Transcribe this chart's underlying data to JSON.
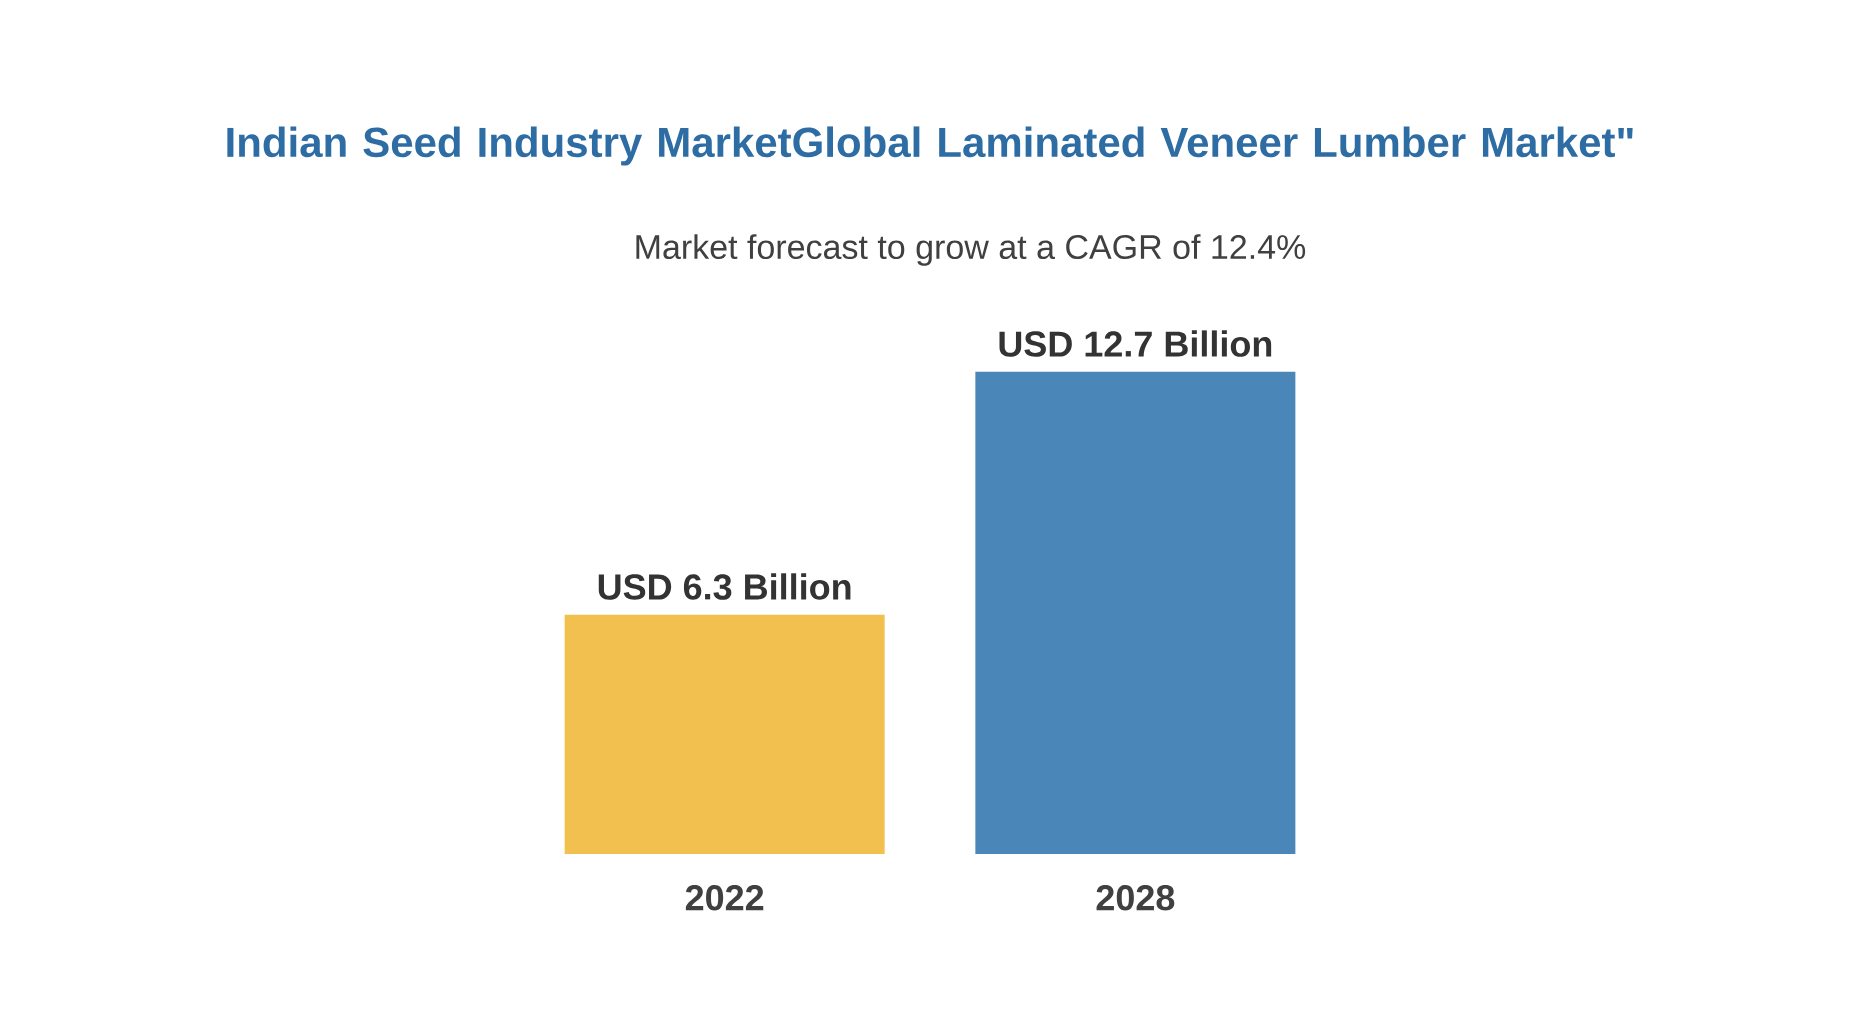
{
  "chart_data": {
    "type": "bar",
    "title": "Indian Seed Industry MarketGlobal Laminated Veneer Lumber Market\"",
    "subtitle": "Market forecast to grow at a CAGR of 12.4%",
    "categories": [
      "2022",
      "2028"
    ],
    "values": [
      6.3,
      12.7
    ],
    "colors": [
      "#f2c04e",
      "#4a86b8"
    ],
    "value_labels": [
      "USD 6.3 Billion",
      "USD 12.7 Billion"
    ]
  }
}
